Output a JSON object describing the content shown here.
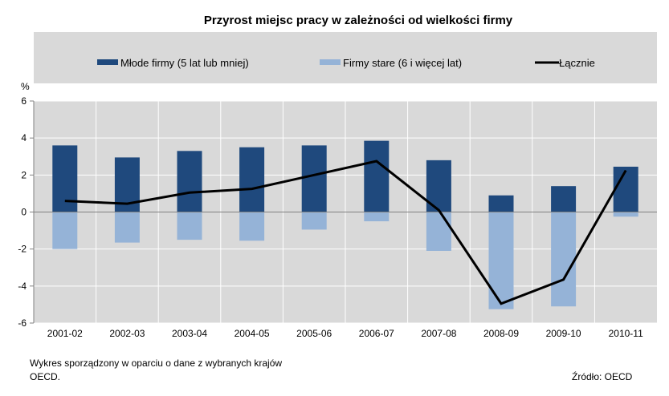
{
  "chart_data": {
    "type": "bar",
    "title": "Przyrost miejsc  pracy w zależności od wielkości firmy",
    "ylabel": "%",
    "ylim": [
      -6,
      6
    ],
    "yticks": [
      6,
      4,
      2,
      0,
      -2,
      -4,
      -6
    ],
    "grid": true,
    "legend_placement": "top",
    "categories": [
      "2001-02",
      "2002-03",
      "2003-04",
      "2004-05",
      "2005-06",
      "2006-07",
      "2007-08",
      "2008-09",
      "2009-10",
      "2010-11"
    ],
    "series": [
      {
        "name": "Młode firmy (5 lat lub mniej)",
        "type": "bar",
        "color": "#1f497d",
        "values": [
          3.6,
          2.95,
          3.3,
          3.5,
          3.6,
          3.85,
          2.8,
          0.9,
          1.4,
          2.45
        ]
      },
      {
        "name": "Firmy stare (6 i więcej lat)",
        "type": "bar",
        "color": "#95b3d7",
        "values": [
          -2.0,
          -1.65,
          -1.5,
          -1.55,
          -0.95,
          -0.5,
          -2.1,
          -5.25,
          -5.1,
          -0.25
        ]
      },
      {
        "name": "Łącznie",
        "type": "line",
        "color": "#000000",
        "values": [
          0.6,
          0.45,
          1.05,
          1.25,
          2.0,
          2.75,
          0.1,
          -4.95,
          -3.65,
          2.25
        ]
      }
    ]
  },
  "footer": {
    "note_line1": "Wykres sporządzony w oparciu o dane z wybranych krajów",
    "note_line2": "OECD.",
    "source": "Źródło: OECD"
  }
}
